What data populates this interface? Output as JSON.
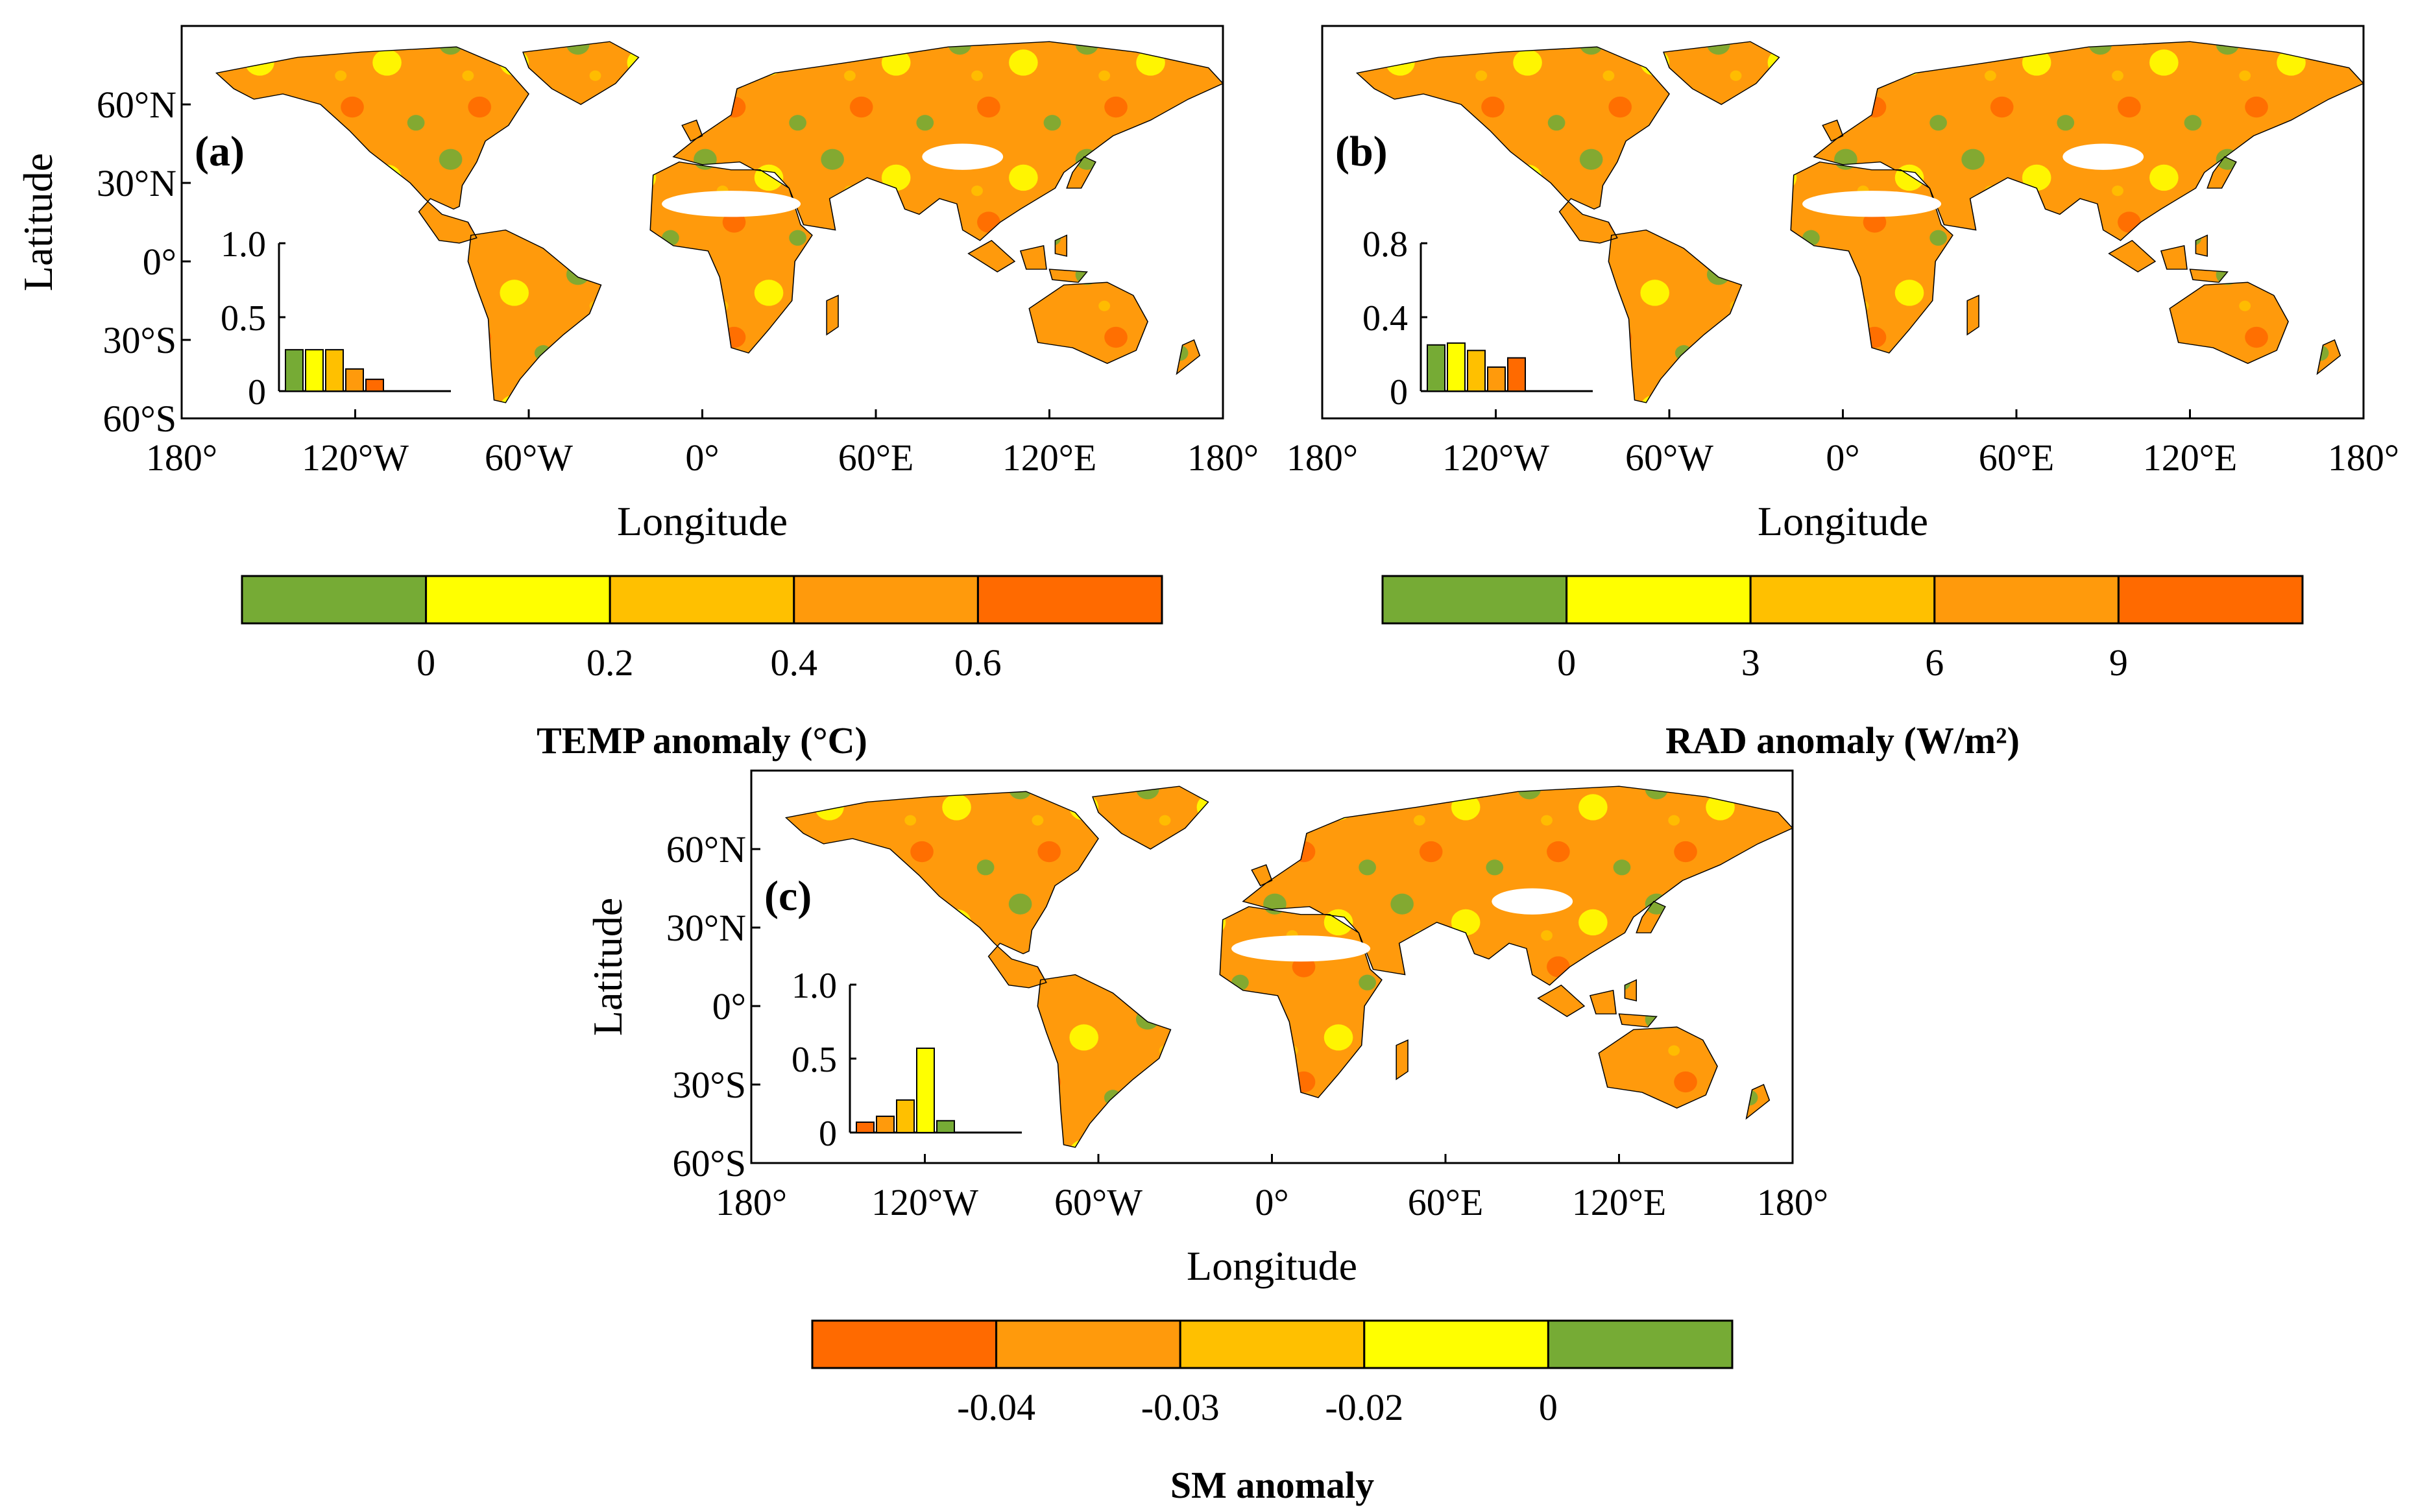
{
  "figure": {
    "colors": {
      "green": "#76AB35",
      "yellow": "#FFFF00",
      "lightorange": "#FFC000",
      "orange": "#FF9A0C",
      "redorange": "#FF6A00",
      "white": "#FFFFFF",
      "border": "#000000"
    },
    "panels": [
      {
        "label": "(a)",
        "xlabel": "Longitude",
        "ylabel": "Latitude",
        "lon_ticks": [
          "180°",
          "120°W",
          "60°W",
          "0°",
          "60°E",
          "120°E",
          "180°"
        ],
        "lat_ticks": [
          "60°N",
          "30°N",
          "0°",
          "30°S",
          "60°S"
        ],
        "colorbar": {
          "title": "TEMP anomaly (°C)",
          "ticks": [
            "0",
            "0.2",
            "0.4",
            "0.6"
          ],
          "color_order": [
            "green",
            "yellow",
            "lightorange",
            "orange",
            "redorange"
          ]
        },
        "inset": {
          "yticks": [
            "0",
            "0.5",
            "1.0"
          ],
          "ymax": 1.0,
          "values": [
            0.28,
            0.28,
            0.28,
            0.15,
            0.08
          ],
          "color_order": [
            "green",
            "yellow",
            "lightorange",
            "orange",
            "redorange"
          ]
        }
      },
      {
        "label": "(b)",
        "xlabel": "Longitude",
        "ylabel": "",
        "lon_ticks": [
          "180°",
          "120°W",
          "60°W",
          "0°",
          "60°E",
          "120°E",
          "180°"
        ],
        "lat_ticks": [],
        "colorbar": {
          "title": "RAD anomaly (W/m²)",
          "ticks": [
            "0",
            "3",
            "6",
            "9"
          ],
          "color_order": [
            "green",
            "yellow",
            "lightorange",
            "orange",
            "redorange"
          ]
        },
        "inset": {
          "yticks": [
            "0",
            "0.4",
            "0.8"
          ],
          "ymax": 0.8,
          "values": [
            0.25,
            0.26,
            0.22,
            0.13,
            0.18
          ],
          "color_order": [
            "green",
            "yellow",
            "lightorange",
            "orange",
            "redorange"
          ]
        }
      },
      {
        "label": "(c)",
        "xlabel": "Longitude",
        "ylabel": "Latitude",
        "lon_ticks": [
          "180°",
          "120°W",
          "60°W",
          "0°",
          "60°E",
          "120°E",
          "180°"
        ],
        "lat_ticks": [
          "60°N",
          "30°N",
          "0°",
          "30°S",
          "60°S"
        ],
        "colorbar": {
          "title": "SM anomaly",
          "ticks": [
            "-0.04",
            "-0.03",
            "-0.02",
            "0"
          ],
          "color_order": [
            "redorange",
            "orange",
            "lightorange",
            "yellow",
            "green"
          ]
        },
        "inset": {
          "yticks": [
            "0",
            "0.5",
            "1.0"
          ],
          "ymax": 1.0,
          "values": [
            0.07,
            0.11,
            0.22,
            0.57,
            0.08
          ],
          "color_order": [
            "redorange",
            "orange",
            "lightorange",
            "yellow",
            "green"
          ]
        }
      }
    ]
  }
}
